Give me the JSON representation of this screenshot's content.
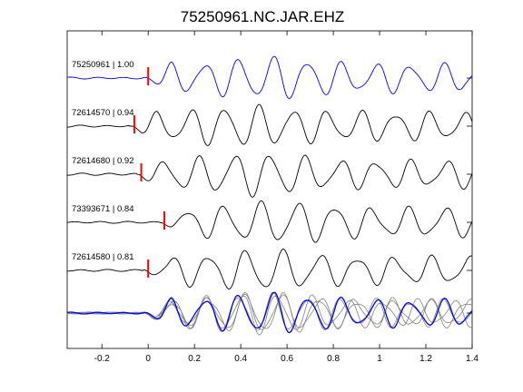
{
  "chart_data": {
    "type": "line",
    "title": "75250961.NC.JAR.EHZ",
    "xlabel": "",
    "ylabel": "",
    "xlim": [
      -0.35,
      1.4
    ],
    "x_ticks": [
      -0.2,
      0,
      0.2,
      0.4,
      0.6,
      0.8,
      1,
      1.2,
      1.4
    ],
    "x_tick_labels": [
      "-0.2",
      "0",
      "0.2",
      "0.4",
      "0.6",
      "0.8",
      "1",
      "1.2",
      "1.4"
    ],
    "grid": false,
    "colors": {
      "reference": "#0000ff",
      "trace": "#000000",
      "overlay": "#808080",
      "pick": "#ff0000",
      "axes": "#000000"
    },
    "traces": [
      {
        "label": "75250961 | 1.00",
        "pick_time": 0.0,
        "reference": true
      },
      {
        "label": "72614570 | 0.94",
        "pick_time": -0.06,
        "reference": false
      },
      {
        "label": "72614680 | 0.92",
        "pick_time": -0.03,
        "reference": false
      },
      {
        "label": "73393671 | 0.84",
        "pick_time": 0.07,
        "reference": false
      },
      {
        "label": "72614580 | 0.81",
        "pick_time": 0.0,
        "reference": false
      }
    ],
    "stack_overlay": true
  }
}
